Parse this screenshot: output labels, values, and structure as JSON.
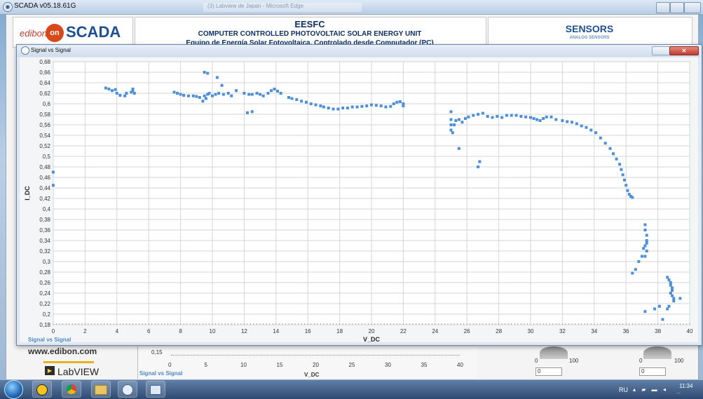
{
  "app": {
    "title": "SCADA v05.18.61G",
    "blurred_tab": "(3) Labview de Japan - Microsoft Edge"
  },
  "header": {
    "logo_small": "edibon",
    "logo_on": "on",
    "logo_big": "SCADA",
    "code": "EESFC",
    "title": "COMPUTER CONTROLLED PHOTOVOLTAIC SOLAR ENERGY UNIT",
    "subtitle": "Equipo de Energía Solar Fotovoltaica, Controlado desde Computador (PC)",
    "sensors": "SENSORS",
    "analog": "ANALOG SENSORS"
  },
  "popup": {
    "title": "Signal vs Signal",
    "legend": "Signal vs Signal"
  },
  "lower": {
    "url": "www.edibon.com",
    "labview": "LabVIEW",
    "legend": "Signal vs Signal",
    "xlabel": "V_DC",
    "y_tick": "0,15",
    "x_ticks": [
      "0",
      "5",
      "10",
      "15",
      "20",
      "25",
      "30",
      "35",
      "40"
    ],
    "dial1_min": "0",
    "dial1_max": "100",
    "dial1_value": "0",
    "dial2_min": "0",
    "dial2_max": "100",
    "dial2_value": "0"
  },
  "taskbar": {
    "lang": "RU",
    "time": "11:34",
    "date": "..."
  },
  "colors": {
    "points": "#4d8fd8",
    "legend": "#4d87c7",
    "grid": "#d6d6d6",
    "plot_bg": "#ffffff"
  },
  "chart_data": {
    "type": "scatter",
    "title": "",
    "xlabel": "V_DC",
    "ylabel": "I_DC",
    "xlim": [
      0,
      40
    ],
    "ylim": [
      0.18,
      0.68
    ],
    "grid": true,
    "legend": "bottom-left",
    "xticks": [
      "0",
      "2",
      "4",
      "6",
      "8",
      "10",
      "12",
      "14",
      "16",
      "18",
      "20",
      "22",
      "24",
      "26",
      "28",
      "30",
      "32",
      "34",
      "36",
      "38",
      "40"
    ],
    "yticks": [
      "0,18",
      "0,2",
      "0,22",
      "0,24",
      "0,26",
      "0,28",
      "0,3",
      "0,32",
      "0,34",
      "0,36",
      "0,38",
      "0,4",
      "0,42",
      "0,44",
      "0,46",
      "0,48",
      "0,5",
      "0,52",
      "0,54",
      "0,56",
      "0,58",
      "0,6",
      "0,62",
      "0,64",
      "0,66",
      "0,68"
    ],
    "series": [
      {
        "name": "Signal vs Signal",
        "points": [
          [
            0.0,
            0.47
          ],
          [
            0.0,
            0.445
          ],
          [
            3.3,
            0.63
          ],
          [
            3.5,
            0.628
          ],
          [
            3.7,
            0.625
          ],
          [
            3.9,
            0.627
          ],
          [
            4.0,
            0.62
          ],
          [
            4.2,
            0.616
          ],
          [
            4.5,
            0.615
          ],
          [
            4.6,
            0.62
          ],
          [
            4.9,
            0.622
          ],
          [
            5.0,
            0.625
          ],
          [
            5.0,
            0.628
          ],
          [
            5.1,
            0.62
          ],
          [
            7.6,
            0.622
          ],
          [
            7.8,
            0.62
          ],
          [
            8.0,
            0.618
          ],
          [
            8.2,
            0.616
          ],
          [
            8.5,
            0.615
          ],
          [
            8.8,
            0.615
          ],
          [
            9.0,
            0.614
          ],
          [
            9.2,
            0.612
          ],
          [
            9.4,
            0.605
          ],
          [
            9.5,
            0.615
          ],
          [
            9.6,
            0.61
          ],
          [
            9.7,
            0.618
          ],
          [
            9.8,
            0.62
          ],
          [
            10.0,
            0.615
          ],
          [
            10.2,
            0.618
          ],
          [
            10.4,
            0.62
          ],
          [
            9.5,
            0.66
          ],
          [
            9.7,
            0.658
          ],
          [
            10.3,
            0.65
          ],
          [
            10.6,
            0.635
          ],
          [
            10.7,
            0.618
          ],
          [
            11.0,
            0.62
          ],
          [
            11.2,
            0.615
          ],
          [
            11.5,
            0.625
          ],
          [
            12.0,
            0.62
          ],
          [
            12.3,
            0.618
          ],
          [
            12.5,
            0.618
          ],
          [
            12.8,
            0.62
          ],
          [
            13.0,
            0.618
          ],
          [
            13.2,
            0.615
          ],
          [
            13.5,
            0.62
          ],
          [
            13.7,
            0.625
          ],
          [
            13.9,
            0.628
          ],
          [
            14.1,
            0.624
          ],
          [
            14.3,
            0.62
          ],
          [
            12.2,
            0.583
          ],
          [
            12.5,
            0.585
          ],
          [
            14.8,
            0.612
          ],
          [
            15.0,
            0.61
          ],
          [
            15.3,
            0.608
          ],
          [
            15.6,
            0.605
          ],
          [
            15.9,
            0.603
          ],
          [
            16.2,
            0.6
          ],
          [
            16.5,
            0.598
          ],
          [
            16.8,
            0.596
          ],
          [
            17.0,
            0.594
          ],
          [
            17.3,
            0.592
          ],
          [
            17.6,
            0.59
          ],
          [
            17.9,
            0.59
          ],
          [
            18.2,
            0.592
          ],
          [
            18.5,
            0.592
          ],
          [
            18.8,
            0.594
          ],
          [
            19.1,
            0.594
          ],
          [
            19.4,
            0.595
          ],
          [
            19.7,
            0.596
          ],
          [
            20.0,
            0.598
          ],
          [
            20.3,
            0.597
          ],
          [
            20.6,
            0.596
          ],
          [
            20.9,
            0.594
          ],
          [
            21.2,
            0.595
          ],
          [
            21.4,
            0.6
          ],
          [
            21.6,
            0.603
          ],
          [
            21.8,
            0.604
          ],
          [
            22.0,
            0.6
          ],
          [
            22.0,
            0.596
          ],
          [
            25.0,
            0.585
          ],
          [
            25.0,
            0.57
          ],
          [
            25.0,
            0.56
          ],
          [
            25.0,
            0.55
          ],
          [
            25.1,
            0.545
          ],
          [
            25.2,
            0.56
          ],
          [
            25.3,
            0.568
          ],
          [
            25.5,
            0.57
          ],
          [
            25.7,
            0.565
          ],
          [
            25.9,
            0.572
          ],
          [
            26.1,
            0.575
          ],
          [
            26.4,
            0.578
          ],
          [
            26.7,
            0.58
          ],
          [
            27.0,
            0.582
          ],
          [
            27.3,
            0.576
          ],
          [
            27.6,
            0.574
          ],
          [
            27.9,
            0.576
          ],
          [
            28.2,
            0.574
          ],
          [
            28.5,
            0.578
          ],
          [
            28.8,
            0.578
          ],
          [
            29.1,
            0.578
          ],
          [
            29.4,
            0.576
          ],
          [
            29.7,
            0.575
          ],
          [
            30.0,
            0.574
          ],
          [
            30.2,
            0.572
          ],
          [
            30.4,
            0.57
          ],
          [
            30.6,
            0.568
          ],
          [
            30.8,
            0.572
          ],
          [
            31.0,
            0.575
          ],
          [
            31.3,
            0.575
          ],
          [
            31.6,
            0.57
          ],
          [
            32.0,
            0.568
          ],
          [
            32.3,
            0.566
          ],
          [
            32.6,
            0.565
          ],
          [
            32.9,
            0.562
          ],
          [
            33.2,
            0.558
          ],
          [
            33.5,
            0.555
          ],
          [
            33.8,
            0.55
          ],
          [
            34.1,
            0.545
          ],
          [
            34.4,
            0.535
          ],
          [
            34.7,
            0.525
          ],
          [
            35.0,
            0.515
          ],
          [
            35.2,
            0.505
          ],
          [
            35.4,
            0.495
          ],
          [
            35.6,
            0.485
          ],
          [
            35.7,
            0.475
          ],
          [
            35.8,
            0.465
          ],
          [
            35.9,
            0.455
          ],
          [
            36.0,
            0.445
          ],
          [
            36.1,
            0.435
          ],
          [
            36.2,
            0.428
          ],
          [
            36.3,
            0.424
          ],
          [
            36.4,
            0.422
          ],
          [
            26.7,
            0.48
          ],
          [
            26.8,
            0.49
          ],
          [
            25.5,
            0.515
          ],
          [
            37.2,
            0.37
          ],
          [
            37.2,
            0.36
          ],
          [
            37.3,
            0.35
          ],
          [
            37.3,
            0.34
          ],
          [
            37.2,
            0.33
          ],
          [
            37.3,
            0.32
          ],
          [
            37.2,
            0.31
          ],
          [
            37.1,
            0.325
          ],
          [
            37.3,
            0.335
          ],
          [
            36.8,
            0.3
          ],
          [
            36.6,
            0.285
          ],
          [
            36.4,
            0.278
          ],
          [
            37.0,
            0.31
          ],
          [
            37.2,
            0.205
          ],
          [
            37.8,
            0.21
          ],
          [
            38.1,
            0.215
          ],
          [
            38.3,
            0.19
          ],
          [
            38.6,
            0.27
          ],
          [
            38.7,
            0.265
          ],
          [
            38.8,
            0.26
          ],
          [
            38.8,
            0.255
          ],
          [
            38.9,
            0.25
          ],
          [
            38.9,
            0.245
          ],
          [
            38.8,
            0.24
          ],
          [
            38.9,
            0.235
          ],
          [
            39.0,
            0.23
          ],
          [
            39.0,
            0.225
          ],
          [
            38.7,
            0.215
          ],
          [
            38.6,
            0.21
          ],
          [
            39.4,
            0.23
          ]
        ]
      }
    ]
  }
}
